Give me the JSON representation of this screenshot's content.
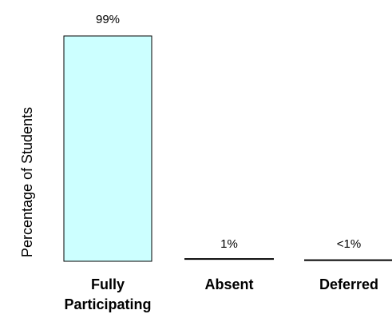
{
  "chart_data": {
    "type": "bar",
    "title": "",
    "xlabel": "",
    "ylabel": "Percentage of Students",
    "ylim": [
      0,
      100
    ],
    "grid": false,
    "legend": "none",
    "bar_color": "#ccffff",
    "bar_edge_color": "#000000",
    "categories": [
      {
        "lines": [
          "Fully",
          "Participating"
        ]
      },
      {
        "lines": [
          "Absent"
        ]
      },
      {
        "lines": [
          "Deferred"
        ]
      }
    ],
    "values": [
      99,
      1,
      0.5
    ],
    "data_labels": [
      "99%",
      "1%",
      "<1%"
    ]
  }
}
